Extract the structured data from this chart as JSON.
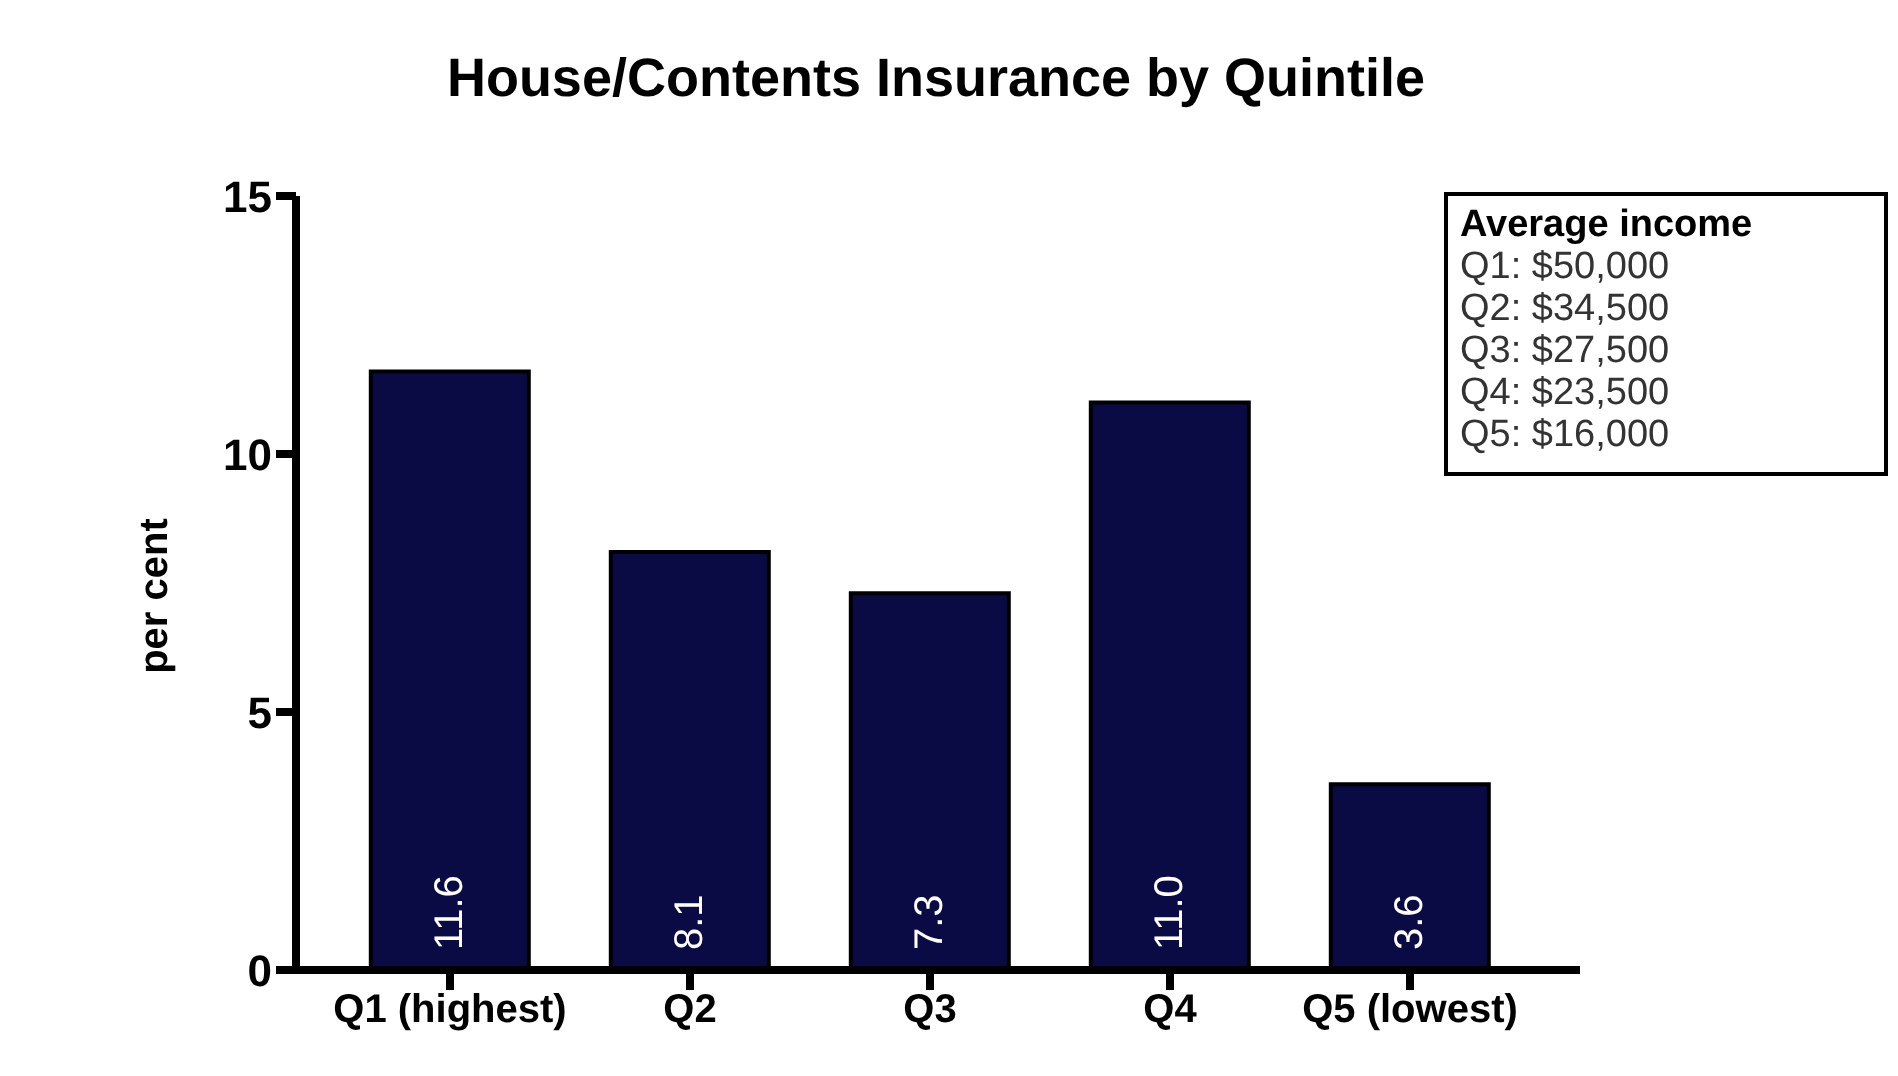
{
  "chart_data": {
    "type": "bar",
    "title": "House/Contents Insurance by Quintile",
    "ylabel": "per cent",
    "categories": [
      "Q1 (highest)",
      "Q2",
      "Q3",
      "Q4",
      "Q5 (lowest)"
    ],
    "values": [
      11.6,
      8.1,
      7.3,
      11.0,
      3.6
    ],
    "value_labels": [
      "11.6",
      "8.1",
      "7.3",
      "11.0",
      "3.6"
    ],
    "color": "#0a0a45",
    "ylim": [
      0,
      15
    ],
    "yticks": [
      0,
      5,
      10,
      15
    ],
    "grid": false,
    "legend": false,
    "annotations": [
      "Average income",
      "Q1: $50,000",
      "Q2: $34,500",
      "Q3: $27,500",
      "Q4: $23,500",
      "Q5: $16,000"
    ]
  }
}
